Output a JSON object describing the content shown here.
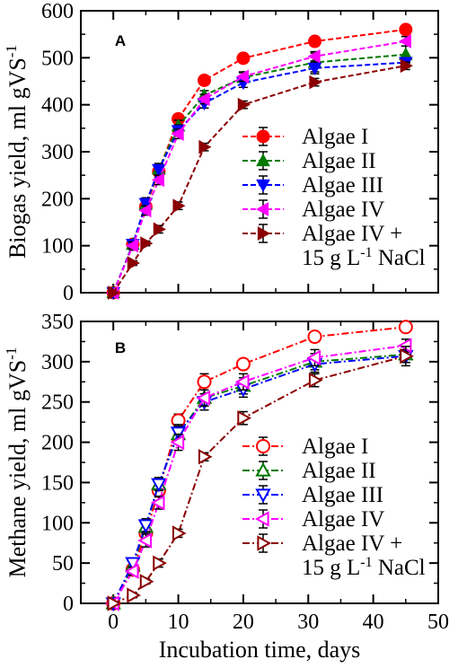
{
  "chart_data": [
    {
      "panel": "A",
      "type": "line",
      "ylabel": "Biogas yield, ml gVS",
      "ylabel_sup": "-1",
      "xlabel": "",
      "xlim": [
        -5,
        50
      ],
      "ylim": [
        0,
        600
      ],
      "xticks": [],
      "yticks": [
        0,
        100,
        200,
        300,
        400,
        500,
        600
      ],
      "x": [
        0,
        3,
        5,
        7,
        10,
        14,
        20,
        31,
        45
      ],
      "legend_position": "center-right",
      "series": [
        {
          "name": "Algae I",
          "color": "#ff0000",
          "marker": "circle",
          "filled": true,
          "dash": "6,3",
          "values": [
            0,
            103,
            183,
            258,
            370,
            452,
            499,
            535,
            560
          ],
          "errors": [
            0,
            8,
            10,
            12,
            10,
            8,
            5,
            5,
            5
          ]
        },
        {
          "name": "Algae II",
          "color": "#007a00",
          "marker": "triangle-up",
          "filled": true,
          "dash": "6,3",
          "values": [
            0,
            103,
            188,
            263,
            355,
            420,
            458,
            490,
            507
          ],
          "errors": [
            0,
            8,
            12,
            12,
            12,
            10,
            10,
            20,
            18
          ]
        },
        {
          "name": "Algae III",
          "color": "#0000ff",
          "marker": "triangle-down",
          "filled": true,
          "dash": "6,3",
          "values": [
            0,
            103,
            190,
            262,
            345,
            403,
            447,
            478,
            490
          ],
          "errors": [
            0,
            8,
            12,
            12,
            12,
            10,
            10,
            12,
            10
          ]
        },
        {
          "name": "Algae IV",
          "color": "#ff00ff",
          "marker": "triangle-left",
          "filled": true,
          "dash": "6,3",
          "values": [
            0,
            100,
            175,
            240,
            338,
            412,
            460,
            503,
            535
          ],
          "errors": [
            0,
            8,
            10,
            10,
            10,
            10,
            10,
            10,
            10
          ]
        },
        {
          "name": "Algae IV +",
          "name_line2": "15 g L",
          "name_line2_sup": "-1",
          "name_line2_tail": " NaCl",
          "color": "#8b0000",
          "marker": "triangle-right",
          "filled": true,
          "dash": "6,3",
          "values": [
            0,
            63,
            105,
            135,
            185,
            310,
            400,
            448,
            483
          ],
          "errors": [
            0,
            5,
            5,
            8,
            8,
            8,
            8,
            8,
            8
          ]
        }
      ]
    },
    {
      "panel": "B",
      "type": "line",
      "ylabel": "Methane yield, ml gVS",
      "ylabel_sup": "-1",
      "xlabel": "Incubation time, days",
      "xlim": [
        -5,
        50
      ],
      "ylim": [
        0,
        350
      ],
      "xticks": [
        0,
        10,
        20,
        30,
        40,
        50
      ],
      "yticks": [
        0,
        50,
        100,
        150,
        200,
        250,
        300,
        350
      ],
      "x": [
        0,
        3,
        5,
        7,
        10,
        14,
        20,
        31,
        45
      ],
      "legend_position": "center-right",
      "series": [
        {
          "name": "Algae I",
          "color": "#ff0000",
          "marker": "circle",
          "filled": false,
          "dash": "8,3,2,3",
          "values": [
            0,
            42,
            87,
            140,
            227,
            275,
            297,
            331,
            343
          ],
          "errors": [
            0,
            5,
            6,
            8,
            8,
            10,
            5,
            5,
            5
          ]
        },
        {
          "name": "Algae II",
          "color": "#007a00",
          "marker": "triangle-up",
          "filled": false,
          "dash": "8,3,2,3",
          "values": [
            0,
            47,
            95,
            148,
            210,
            255,
            270,
            300,
            309
          ],
          "errors": [
            0,
            5,
            8,
            8,
            10,
            10,
            10,
            10,
            10
          ]
        },
        {
          "name": "Algae III",
          "color": "#0000ff",
          "marker": "triangle-down",
          "filled": false,
          "dash": "8,3,2,3",
          "values": [
            0,
            50,
            97,
            148,
            212,
            250,
            266,
            297,
            307
          ],
          "errors": [
            0,
            5,
            8,
            8,
            10,
            10,
            10,
            10,
            8
          ]
        },
        {
          "name": "Algae IV",
          "color": "#ff00ff",
          "marker": "triangle-left",
          "filled": false,
          "dash": "8,3,2,3",
          "values": [
            0,
            40,
            78,
            125,
            200,
            255,
            275,
            305,
            320
          ],
          "errors": [
            0,
            5,
            8,
            8,
            10,
            10,
            10,
            10,
            8
          ]
        },
        {
          "name": "Algae IV +",
          "name_line2": "15 g L",
          "name_line2_sup": "-1",
          "name_line2_tail": " NaCl",
          "color": "#8b0000",
          "marker": "triangle-right",
          "filled": false,
          "dash": "8,3,2,3",
          "values": [
            0,
            10,
            27,
            50,
            87,
            182,
            230,
            277,
            307
          ],
          "errors": [
            0,
            3,
            3,
            5,
            5,
            5,
            8,
            8,
            12
          ]
        }
      ]
    }
  ]
}
